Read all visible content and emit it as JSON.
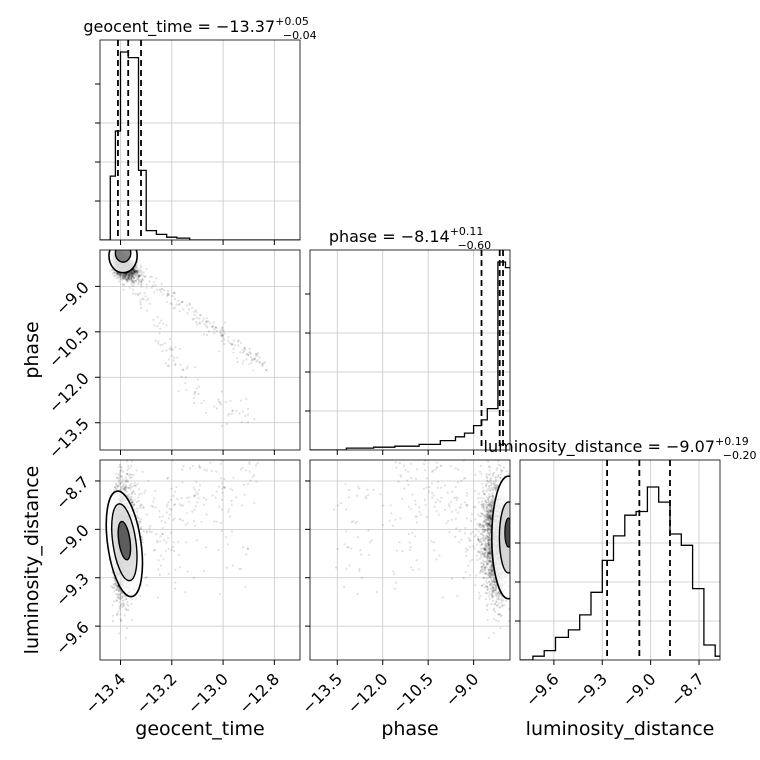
{
  "chart_data": {
    "type": "corner",
    "parameters": [
      "geocent_time",
      "phase",
      "luminosity_distance"
    ],
    "titles": [
      {
        "param": "geocent_time",
        "prefix": "geocent_time = ",
        "median": "−13.37",
        "plus": "+0.05",
        "minus": "−0.04"
      },
      {
        "param": "phase",
        "prefix": "phase = ",
        "median": "−8.14",
        "plus": "+0.11",
        "minus": "−0.60"
      },
      {
        "param": "luminosity_distance",
        "prefix": "luminosity_distance = ",
        "median": "−9.07",
        "plus": "+0.19",
        "minus": "−0.20"
      }
    ],
    "axis_labels": {
      "x": [
        "geocent_time",
        "phase",
        "luminosity_distance"
      ],
      "y": [
        "phase",
        "luminosity_distance"
      ]
    },
    "ranges": {
      "geocent_time": [
        -13.48,
        -12.7
      ],
      "phase": [
        -14.4,
        -7.8
      ],
      "luminosity_distance": [
        -9.81,
        -8.57
      ]
    },
    "ticks": {
      "geocent_time": [
        "−13.4",
        "−13.2",
        "−13.0",
        "−12.8"
      ],
      "phase": [
        "−13.5",
        "−12.0",
        "−10.5",
        "−9.0"
      ],
      "luminosity_distance": [
        "−9.6",
        "−9.3",
        "−9.0",
        "−8.7"
      ]
    },
    "tick_values": {
      "geocent_time": [
        -13.4,
        -13.2,
        -13.0,
        -12.8
      ],
      "phase": [
        -13.5,
        -12.0,
        -10.5,
        -9.0
      ],
      "luminosity_distance": [
        -9.6,
        -9.3,
        -9.0,
        -8.7
      ]
    },
    "quantiles": {
      "geocent_time": [
        -13.41,
        -13.37,
        -13.32
      ],
      "phase": [
        -8.74,
        -8.14,
        -8.03
      ],
      "luminosity_distance": [
        -9.27,
        -9.07,
        -8.88
      ]
    },
    "histograms": {
      "geocent_time": {
        "edges": [
          -13.48,
          -13.44,
          -13.42,
          -13.4,
          -13.37,
          -13.33,
          -13.3,
          -13.26,
          -13.22,
          -13.18,
          -13.13,
          -12.7
        ],
        "counts": [
          0.0,
          0.34,
          0.58,
          1.0,
          0.97,
          0.37,
          0.05,
          0.03,
          0.015,
          0.01,
          0.0
        ]
      },
      "phase": {
        "edges": [
          -14.4,
          -13.2,
          -12.3,
          -11.6,
          -10.8,
          -10.1,
          -9.6,
          -9.3,
          -9.0,
          -8.75,
          -8.55,
          -8.2,
          -7.95,
          -7.8
        ],
        "counts": [
          0.0,
          0.01,
          0.015,
          0.02,
          0.03,
          0.05,
          0.07,
          0.09,
          0.13,
          0.16,
          0.22,
          1.0,
          0.97
        ]
      },
      "luminosity_distance": {
        "edges": [
          -9.81,
          -9.73,
          -9.66,
          -9.59,
          -9.51,
          -9.44,
          -9.37,
          -9.3,
          -9.23,
          -9.16,
          -9.09,
          -9.02,
          -8.95,
          -8.88,
          -8.81,
          -8.74,
          -8.67,
          -8.6,
          -8.57
        ],
        "counts": [
          0.0,
          0.02,
          0.05,
          0.12,
          0.16,
          0.24,
          0.36,
          0.53,
          0.66,
          0.77,
          0.79,
          0.92,
          0.84,
          0.67,
          0.61,
          0.38,
          0.08,
          0.02
        ]
      }
    },
    "scatter_trend": {
      "geocent_time_vs_phase": [
        [
          -13.4,
          -8.0
        ],
        [
          -13.36,
          -8.6
        ],
        [
          -13.3,
          -9.5
        ],
        [
          -13.22,
          -11.0
        ],
        [
          -13.12,
          -12.4
        ],
        [
          -13.0,
          -13.1
        ],
        [
          -12.9,
          -13.2
        ]
      ]
    },
    "grid": true,
    "legend": "none"
  }
}
